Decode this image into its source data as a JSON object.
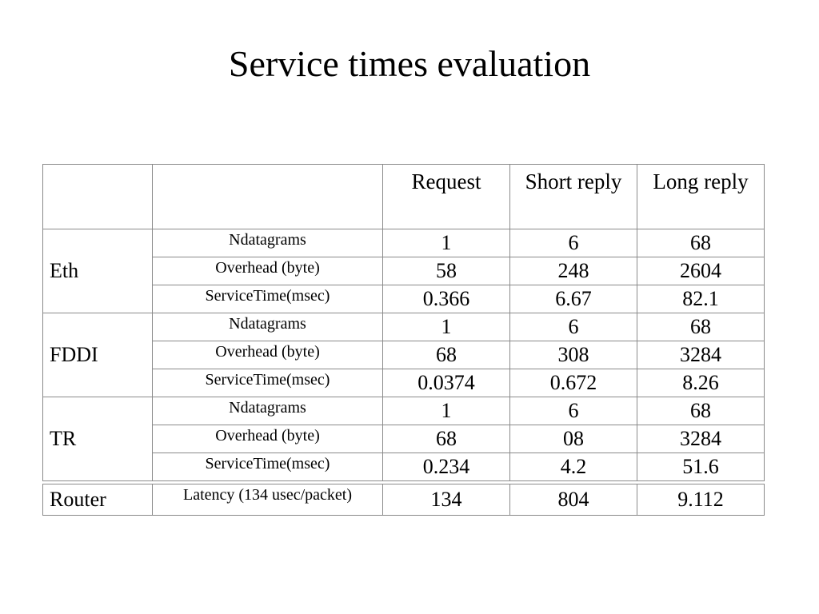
{
  "title": "Service times evaluation",
  "table": {
    "header": {
      "col1": "",
      "col2": "",
      "request": "Request",
      "short_reply": "Short reply",
      "long_reply": "Long reply"
    },
    "groups": [
      {
        "label": "Eth",
        "rows": [
          {
            "metric": "Ndatagrams",
            "request": "1",
            "short": "6",
            "long": "68"
          },
          {
            "metric": "Overhead (byte)",
            "request": "58",
            "short": "248",
            "long": "2604"
          },
          {
            "metric": "ServiceTime(msec)",
            "request": "0.366",
            "short": "6.67",
            "long": "82.1"
          }
        ]
      },
      {
        "label": "FDDI",
        "rows": [
          {
            "metric": "Ndatagrams",
            "request": "1",
            "short": "6",
            "long": "68"
          },
          {
            "metric": "Overhead (byte)",
            "request": "68",
            "short": "308",
            "long": "3284"
          },
          {
            "metric": "ServiceTime(msec)",
            "request": "0.0374",
            "short": "0.672",
            "long": "8.26"
          }
        ]
      },
      {
        "label": "TR",
        "rows": [
          {
            "metric": "Ndatagrams",
            "request": "1",
            "short": "6",
            "long": "68"
          },
          {
            "metric": "Overhead (byte)",
            "request": "68",
            "short": "08",
            "long": "3284"
          },
          {
            "metric": "ServiceTime(msec)",
            "request": "0.234",
            "short": "4.2",
            "long": "51.6"
          }
        ]
      }
    ],
    "router": {
      "label": "Router",
      "metric": "Latency (134 usec/packet)",
      "request": "134",
      "short": "804",
      "long": "9.112"
    }
  }
}
